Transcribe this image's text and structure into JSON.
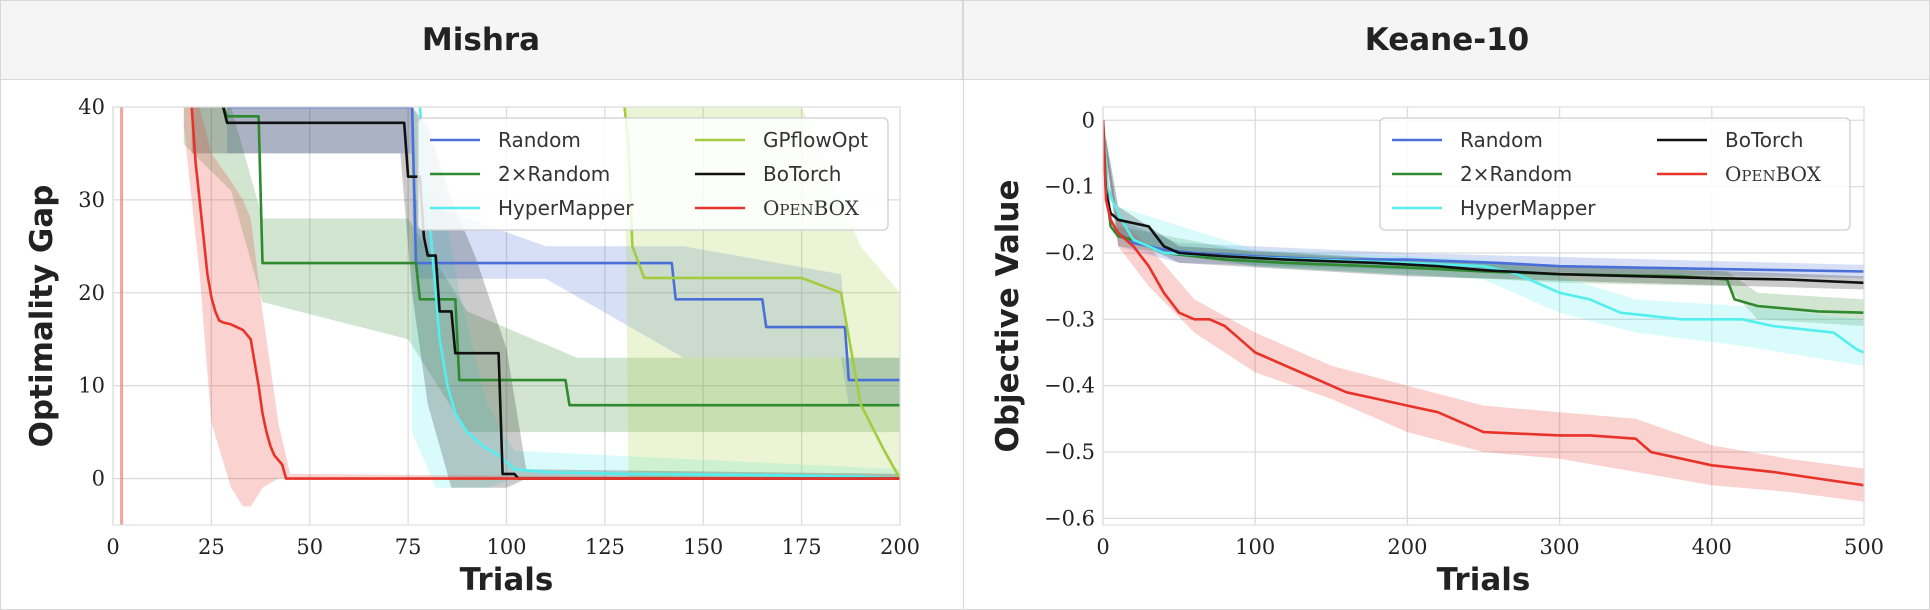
{
  "chart_data": [
    {
      "type": "line",
      "title": "Mishra",
      "xlabel": "Trials",
      "ylabel": "Optimality Gap",
      "xlim": [
        0,
        200
      ],
      "ylim": [
        -5,
        40
      ],
      "xticks": [
        0,
        25,
        50,
        75,
        100,
        125,
        150,
        175,
        200
      ],
      "yticks": [
        0,
        10,
        20,
        30,
        40
      ],
      "grid": true,
      "legend": {
        "placement": "top-right",
        "columns": 2
      },
      "series": [
        {
          "name": "Random",
          "color": "#4a6fd8",
          "x": [
            29,
            76,
            77,
            142,
            143,
            165,
            166,
            186,
            187,
            200
          ],
          "y": [
            40,
            40,
            23.2,
            23.2,
            19.3,
            19.3,
            16.3,
            16.3,
            10.6,
            10.6
          ],
          "band": {
            "x": [
              29,
              76,
              77,
              110,
              145,
              185,
              187,
              200
            ],
            "lo": [
              35,
              35,
              21.5,
              21.5,
              13,
              13,
              8,
              8
            ],
            "hi": [
              40,
              40,
              30,
              25,
              25,
              22,
              13,
              13
            ]
          }
        },
        {
          "name": "2×Random",
          "color": "#2f8a2f",
          "x": [
            28,
            29,
            37,
            38,
            77,
            78,
            87,
            88,
            115,
            116,
            200
          ],
          "y": [
            40,
            39,
            39,
            23.2,
            23.2,
            19.3,
            19.3,
            10.6,
            10.6,
            7.9,
            7.9
          ],
          "band": {
            "x": [
              18,
              30,
              38,
              75,
              90,
              118,
              200
            ],
            "lo": [
              36,
              31,
              19,
              15,
              5,
              5,
              5
            ],
            "hi": [
              40,
              40,
              28,
              28,
              18,
              13,
              13
            ]
          }
        },
        {
          "name": "HyperMapper",
          "color": "#55eeee",
          "x": [
            78,
            80,
            82,
            83,
            85,
            87,
            90,
            94,
            98,
            102,
            110,
            130,
            160,
            190,
            200
          ],
          "y": [
            40,
            30,
            20,
            15,
            10,
            7,
            5,
            3.5,
            2.5,
            1,
            0.7,
            0.5,
            0.4,
            0.2,
            0
          ],
          "band": {
            "x": [
              76,
              82,
              88,
              95,
              102,
              200
            ],
            "lo": [
              5,
              -1,
              -1,
              -1,
              0,
              0
            ],
            "hi": [
              40,
              35,
              20,
              8,
              3,
              1
            ]
          }
        },
        {
          "name": "GPflowOpt",
          "color": "#a3cc3f",
          "x": [
            130,
            131,
            132,
            135,
            150,
            175,
            185,
            190,
            196,
            200
          ],
          "y": [
            40,
            36,
            25,
            21.6,
            21.6,
            21.6,
            20,
            8,
            3,
            0
          ],
          "band": {
            "x": [
              130,
              131,
              140,
              175,
              190,
              200
            ],
            "lo": [
              40,
              0,
              0,
              0,
              0,
              0
            ],
            "hi": [
              40,
              40,
              40,
              40,
              25,
              20
            ]
          }
        },
        {
          "name": "BoTorch",
          "color": "#111111",
          "x": [
            28,
            29,
            74,
            75,
            78,
            79,
            80,
            82,
            83,
            86,
            87,
            98,
            99,
            102,
            103,
            200
          ],
          "y": [
            40,
            38.3,
            38.3,
            32.5,
            32.5,
            26,
            24,
            24,
            18,
            18,
            13.5,
            13.5,
            0.5,
            0.5,
            0,
            0
          ],
          "band": {
            "x": [
              20,
              73,
              76,
              80,
              86,
              92,
              100,
              105,
              200
            ],
            "lo": [
              35,
              35,
              20,
              8,
              -1,
              -1,
              -1,
              0,
              0
            ],
            "hi": [
              40,
              40,
              40,
              38,
              30,
              24,
              14,
              1,
              0.5
            ]
          }
        },
        {
          "name": "OpenBOX",
          "color": "#e8332a",
          "x": [
            20,
            21,
            22,
            23,
            24,
            25,
            26,
            27,
            28,
            30,
            33,
            35,
            37,
            38,
            39,
            40,
            41,
            42,
            43,
            44,
            200
          ],
          "y": [
            40,
            34,
            30,
            26,
            22,
            19.5,
            18,
            17,
            16.8,
            16.6,
            16,
            15,
            10,
            7,
            5,
            3.5,
            2.5,
            2,
            1.5,
            0,
            0
          ],
          "band": {
            "x": [
              18,
              22,
              25,
              30,
              33,
              35,
              38,
              42,
              45,
              200
            ],
            "lo": [
              38,
              22,
              6,
              -1,
              -3,
              -3,
              -1,
              0,
              0,
              0
            ],
            "hi": [
              40,
              40,
              35,
              32,
              30,
              28,
              18,
              6,
              0.5,
              0
            ]
          }
        }
      ]
    },
    {
      "type": "line",
      "title": "Keane-10",
      "xlabel": "Trials",
      "ylabel": "Objective Value",
      "xlim": [
        0,
        500
      ],
      "ylim": [
        -0.61,
        0.02
      ],
      "xticks": [
        0,
        100,
        200,
        300,
        400,
        500
      ],
      "yticks": [
        0.0,
        -0.1,
        -0.2,
        -0.3,
        -0.4,
        -0.5,
        -0.6
      ],
      "grid": true,
      "legend": {
        "placement": "top-right",
        "columns": 2
      },
      "series": [
        {
          "name": "Random",
          "color": "#4a6fd8",
          "x": [
            0,
            2,
            5,
            10,
            20,
            40,
            60,
            100,
            150,
            200,
            260,
            300,
            350,
            400,
            450,
            500
          ],
          "y": [
            0,
            -0.09,
            -0.15,
            -0.17,
            -0.185,
            -0.195,
            -0.2,
            -0.205,
            -0.21,
            -0.21,
            -0.215,
            -0.22,
            -0.222,
            -0.224,
            -0.226,
            -0.228
          ],
          "band": {
            "x": [
              0,
              10,
              50,
              200,
              500
            ],
            "lo": [
              -0.02,
              -0.19,
              -0.215,
              -0.225,
              -0.238
            ],
            "hi": [
              0,
              -0.15,
              -0.185,
              -0.2,
              -0.218
            ]
          }
        },
        {
          "name": "2×Random",
          "color": "#2f8a2f",
          "x": [
            0,
            2,
            5,
            10,
            20,
            40,
            80,
            120,
            200,
            250,
            300,
            380,
            410,
            415,
            430,
            470,
            500
          ],
          "y": [
            0,
            -0.1,
            -0.16,
            -0.175,
            -0.18,
            -0.2,
            -0.21,
            -0.215,
            -0.222,
            -0.228,
            -0.232,
            -0.235,
            -0.24,
            -0.27,
            -0.28,
            -0.288,
            -0.29
          ],
          "band": {
            "x": [
              0,
              10,
              100,
              300,
              410,
              430,
              500
            ],
            "lo": [
              -0.02,
              -0.19,
              -0.22,
              -0.245,
              -0.25,
              -0.3,
              -0.31
            ],
            "hi": [
              0,
              -0.16,
              -0.2,
              -0.22,
              -0.228,
              -0.26,
              -0.27
            ]
          }
        },
        {
          "name": "HyperMapper",
          "color": "#55eeee",
          "x": [
            0,
            3,
            6,
            12,
            20,
            40,
            100,
            200,
            250,
            270,
            290,
            300,
            320,
            340,
            380,
            420,
            440,
            480,
            495,
            500
          ],
          "y": [
            0,
            -0.1,
            -0.12,
            -0.15,
            -0.18,
            -0.2,
            -0.207,
            -0.215,
            -0.22,
            -0.23,
            -0.25,
            -0.26,
            -0.27,
            -0.29,
            -0.3,
            -0.3,
            -0.31,
            -0.32,
            -0.345,
            -0.35
          ],
          "band": {
            "x": [
              0,
              10,
              100,
              250,
              300,
              350,
              420,
              500
            ],
            "lo": [
              -0.02,
              -0.18,
              -0.22,
              -0.24,
              -0.29,
              -0.32,
              -0.34,
              -0.37
            ],
            "hi": [
              0,
              -0.13,
              -0.195,
              -0.21,
              -0.235,
              -0.27,
              -0.28,
              -0.3
            ]
          }
        },
        {
          "name": "BoTorch",
          "color": "#111111",
          "x": [
            0,
            2,
            5,
            10,
            20,
            30,
            40,
            50,
            80,
            120,
            180,
            220,
            250,
            300,
            350,
            400,
            450,
            500
          ],
          "y": [
            0,
            -0.11,
            -0.14,
            -0.15,
            -0.155,
            -0.16,
            -0.19,
            -0.2,
            -0.205,
            -0.21,
            -0.215,
            -0.22,
            -0.226,
            -0.232,
            -0.235,
            -0.238,
            -0.24,
            -0.245
          ],
          "band": {
            "x": [
              0,
              10,
              50,
              200,
              500
            ],
            "lo": [
              -0.02,
              -0.17,
              -0.215,
              -0.235,
              -0.255
            ],
            "hi": [
              0,
              -0.13,
              -0.19,
              -0.21,
              -0.235
            ]
          }
        },
        {
          "name": "OpenBOX",
          "color": "#e8332a",
          "x": [
            0,
            2,
            5,
            10,
            20,
            30,
            40,
            50,
            60,
            70,
            80,
            90,
            100,
            110,
            120,
            140,
            160,
            180,
            200,
            220,
            250,
            300,
            320,
            350,
            360,
            380,
            400,
            440,
            470,
            500
          ],
          "y": [
            0,
            -0.12,
            -0.15,
            -0.17,
            -0.19,
            -0.22,
            -0.26,
            -0.29,
            -0.3,
            -0.3,
            -0.31,
            -0.33,
            -0.35,
            -0.36,
            -0.37,
            -0.39,
            -0.41,
            -0.42,
            -0.43,
            -0.44,
            -0.47,
            -0.475,
            -0.475,
            -0.48,
            -0.5,
            -0.51,
            -0.52,
            -0.53,
            -0.54,
            -0.55
          ],
          "band": {
            "x": [
              0,
              10,
              30,
              60,
              100,
              150,
              200,
              250,
              300,
              350,
              400,
              450,
              500
            ],
            "lo": [
              -0.02,
              -0.19,
              -0.25,
              -0.32,
              -0.38,
              -0.42,
              -0.47,
              -0.5,
              -0.51,
              -0.53,
              -0.55,
              -0.56,
              -0.575
            ],
            "hi": [
              0,
              -0.15,
              -0.19,
              -0.27,
              -0.32,
              -0.37,
              -0.4,
              -0.43,
              -0.44,
              -0.45,
              -0.49,
              -0.51,
              -0.525
            ]
          }
        }
      ]
    }
  ]
}
